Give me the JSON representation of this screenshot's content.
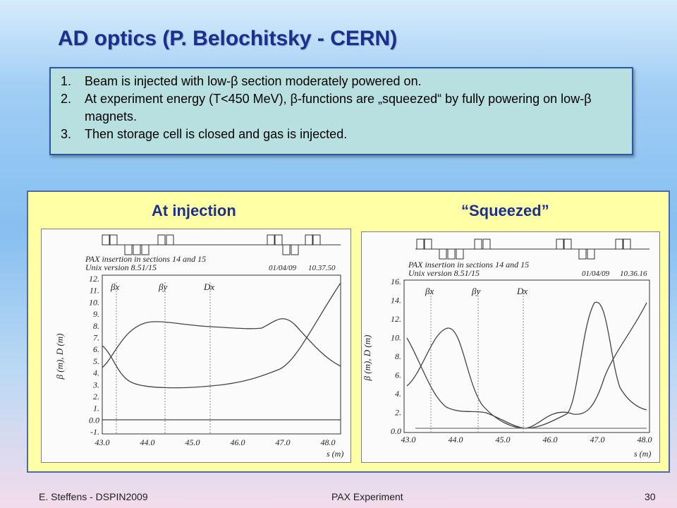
{
  "slide": {
    "title": "AD optics (P. Belochitsky - CERN)",
    "points": [
      {
        "num": "1.",
        "text": "Beam is injected with low-β section moderately powered on."
      },
      {
        "num": "2.",
        "text": "At experiment energy (T<450 MeV), β-functions are „squeezed“ by fully powering on low-β magnets."
      },
      {
        "num": "3.",
        "text": "Then storage cell is closed and gas is injected."
      }
    ],
    "heading_left": "At injection",
    "heading_right": "“Squeezed”"
  },
  "plots": {
    "left": {
      "caption_line1": "PAX insertion in sections 14 and 15",
      "caption_line2": "Unix version 8.51/15",
      "date": "01/04/09",
      "time": "10.37.50",
      "ylabel": "β (m), D (m)",
      "xlabel": "s (m)",
      "label_bx": "βx",
      "label_by": "βy",
      "label_dx": "Dx",
      "yticks": [
        "12.",
        "11.",
        "10.",
        "9.",
        "8.",
        "7.",
        "6.",
        "5.",
        "4.",
        "3.",
        "2.",
        "1.",
        "0.0",
        "-1."
      ],
      "xticks": [
        "43.0",
        "44.0",
        "45.0",
        "46.0",
        "47.0",
        "48.0"
      ]
    },
    "right": {
      "caption_line1": "PAX insertion in sections 14 and 15",
      "caption_line2": "Unix version 8.51/15",
      "date": "01/04/09",
      "time": "10.36.16",
      "ylabel": "β (m), D (m)",
      "xlabel": "s (m)",
      "label_bx": "βx",
      "label_by": "βy",
      "label_dx": "Dx",
      "yticks": [
        "16.",
        "14.",
        "12.",
        "10.",
        "8.",
        "6.",
        "4.",
        "2.",
        "0.0"
      ],
      "xticks": [
        "43.0",
        "44.0",
        "45.0",
        "46.0",
        "47.0",
        "48.0"
      ]
    }
  },
  "footer": {
    "left": "E. Steffens - DSPIN2009",
    "center": "PAX Experiment",
    "page": "30"
  }
}
